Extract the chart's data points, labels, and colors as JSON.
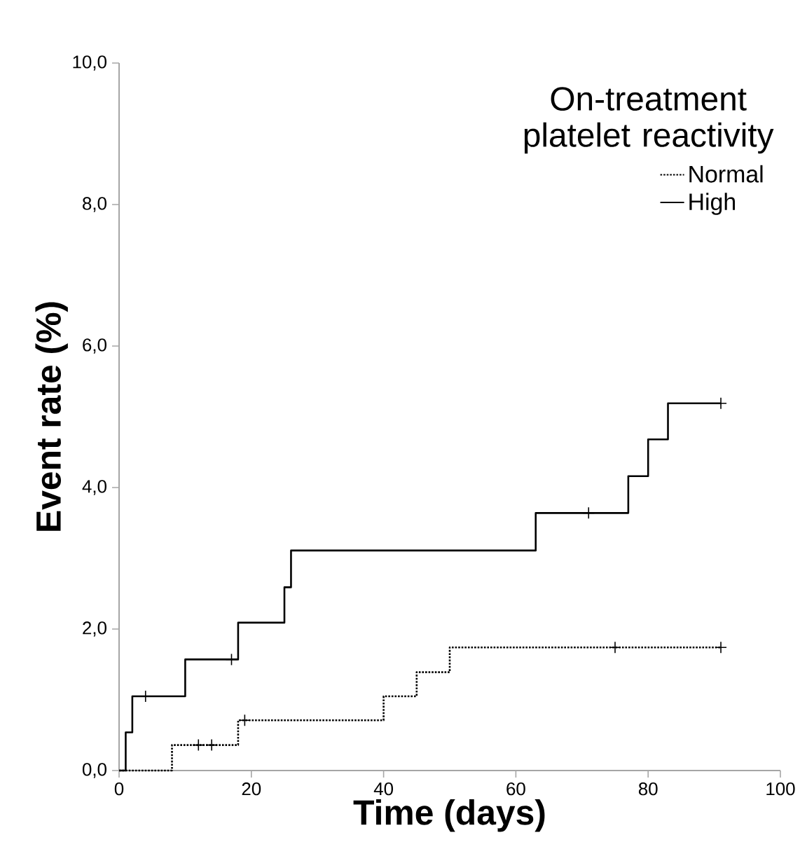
{
  "chart_data": {
    "type": "step",
    "xlabel": "Time (days)",
    "ylabel": "Event rate (%)",
    "legend_title": "On-treatment platelet reactivity",
    "series": [
      {
        "name": "Normal",
        "color": "#000000",
        "line_style": "dotted",
        "x": [
          0,
          8,
          18,
          40,
          45,
          50,
          91
        ],
        "values": [
          0,
          0.36,
          0.71,
          1.05,
          1.39,
          1.74,
          1.74
        ]
      },
      {
        "name": "High",
        "color": "#000000",
        "line_style": "solid",
        "x": [
          0,
          1,
          2,
          10,
          18,
          25,
          26,
          63,
          77,
          80,
          83,
          91
        ],
        "values": [
          0,
          0.54,
          1.05,
          1.57,
          2.09,
          2.59,
          3.11,
          3.64,
          4.16,
          4.68,
          5.19,
          5.19
        ]
      },
      {
        "type": "scatter",
        "marker": "cross",
        "color": "#000000",
        "x": [
          12,
          14,
          19,
          75,
          91
        ],
        "values": [
          0.36,
          0.36,
          0.71,
          1.74,
          1.74
        ]
      },
      {
        "type": "scatter",
        "marker": "cross",
        "color": "#000000",
        "x": [
          4,
          17,
          71,
          91
        ],
        "values": [
          1.05,
          1.57,
          3.64,
          5.19
        ]
      }
    ],
    "xlim": [
      0,
      100
    ],
    "xticks": [
      0,
      20,
      40,
      60,
      80,
      100
    ],
    "ylim": [
      0,
      10
    ],
    "yticks": [
      {
        "value": 0,
        "label": "0,0"
      },
      {
        "value": 2,
        "label": "2,0"
      },
      {
        "value": 4,
        "label": "4,0"
      },
      {
        "value": 6,
        "label": "6,0"
      },
      {
        "value": 8,
        "label": "8,0"
      },
      {
        "value": 10,
        "label": "10,0"
      }
    ],
    "legend": "top right",
    "grid": false
  }
}
